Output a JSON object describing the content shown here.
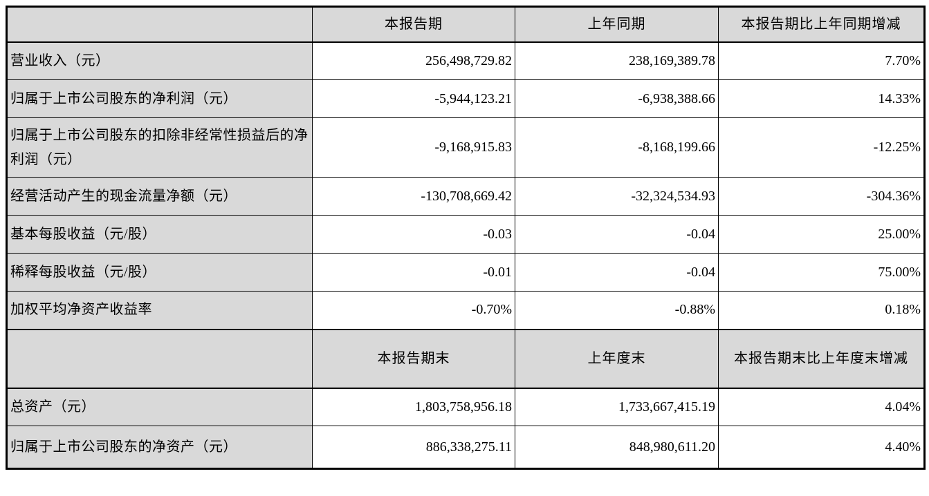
{
  "table": {
    "colors": {
      "shaded_cell_bg": "#d9d9d9",
      "border": "#000000",
      "text": "#000000"
    },
    "period_header": {
      "label": "",
      "current": "本报告期",
      "prior": "上年同期",
      "change": "本报告期比上年同期增减"
    },
    "period_rows": [
      {
        "label": "营业收入（元）",
        "current": "256,498,729.82",
        "prior": "238,169,389.78",
        "change": "7.70%"
      },
      {
        "label": "归属于上市公司股东的净利润（元）",
        "current": "-5,944,123.21",
        "prior": "-6,938,388.66",
        "change": "14.33%"
      },
      {
        "label": "归属于上市公司股东的扣除非经常性损益后的净利润（元）",
        "current": "-9,168,915.83",
        "prior": "-8,168,199.66",
        "change": "-12.25%"
      },
      {
        "label": "经营活动产生的现金流量净额（元）",
        "current": "-130,708,669.42",
        "prior": "-32,324,534.93",
        "change": "-304.36%"
      },
      {
        "label": "基本每股收益（元/股）",
        "current": "-0.03",
        "prior": "-0.04",
        "change": "25.00%"
      },
      {
        "label": "稀释每股收益（元/股）",
        "current": "-0.01",
        "prior": "-0.04",
        "change": "75.00%"
      },
      {
        "label": "加权平均净资产收益率",
        "current": "-0.70%",
        "prior": "-0.88%",
        "change": "0.18%"
      }
    ],
    "balance_header": {
      "label": "",
      "current": "本报告期末",
      "prior": "上年度末",
      "change": "本报告期末比上年度末增减"
    },
    "balance_rows": [
      {
        "label": "总资产（元）",
        "current": "1,803,758,956.18",
        "prior": "1,733,667,415.19",
        "change": "4.04%"
      },
      {
        "label": "归属于上市公司股东的净资产（元）",
        "current": "886,338,275.11",
        "prior": "848,980,611.20",
        "change": "4.40%"
      }
    ]
  }
}
